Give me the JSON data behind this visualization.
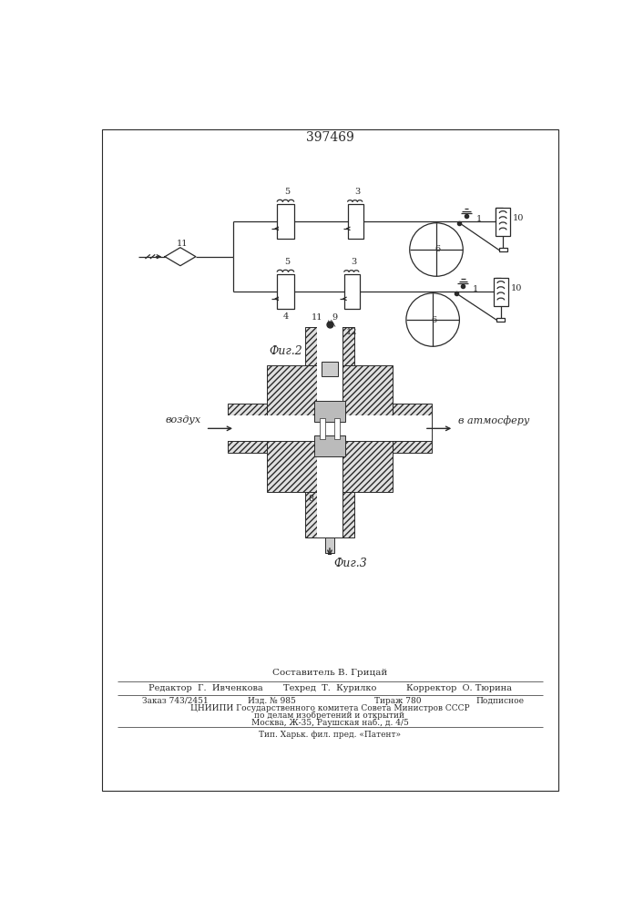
{
  "patent_number": "397469",
  "fig2_label": "Фиг.2",
  "fig3_label": "Фиг.3",
  "vozdukh": "воздух",
  "atmosferu": "в атмосферу",
  "composer": "Составитель В. Грицай",
  "editor": "Редактор  Г.  Ивченкова",
  "techred": "Техред  Т.  Курилко",
  "corrector": "Корректор  О. Тюрина",
  "order": "Заказ 743/2451",
  "izdanie": "Изд. № 985",
  "tirazh": "Тираж 780",
  "podpisnoe": "Подписное",
  "tsniip": "ЦНИИПИ Государственного комитета Совета Министров СССР",
  "po_delam": "по делам изобретений и открытий",
  "moskva": "Москва, Ж-35, Раушская наб., д. 4/5",
  "tip": "Тип. Харьк. фил. пред. «Патент»",
  "bg_color": "#ffffff",
  "line_color": "#2a2a2a"
}
